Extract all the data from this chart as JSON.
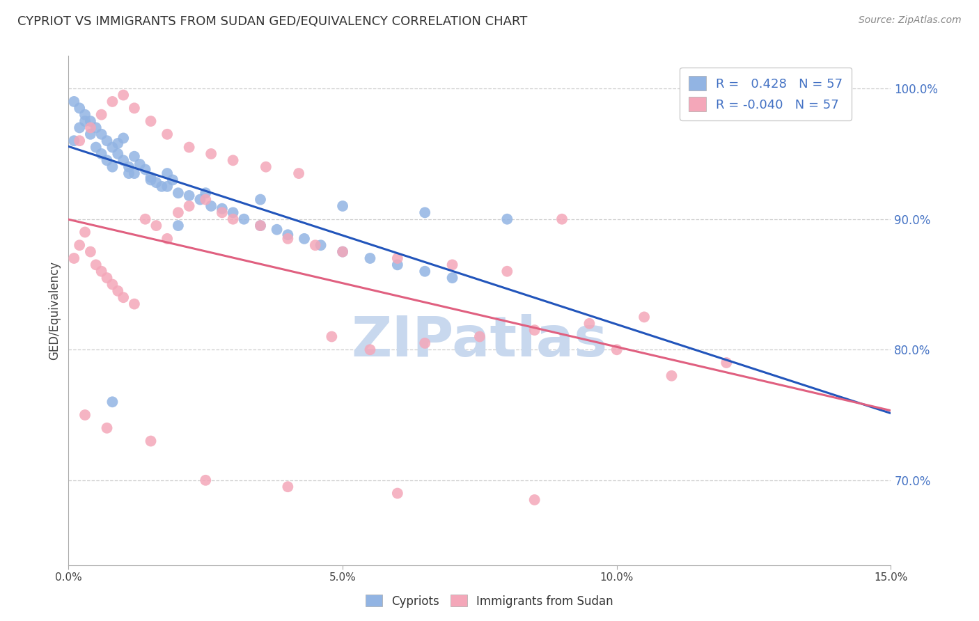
{
  "title": "CYPRIOT VS IMMIGRANTS FROM SUDAN GED/EQUIVALENCY CORRELATION CHART",
  "source": "Source: ZipAtlas.com",
  "ylabel": "GED/Equivalency",
  "ylabel_right_ticks": [
    "100.0%",
    "90.0%",
    "80.0%",
    "70.0%"
  ],
  "ylabel_right_vals": [
    1.0,
    0.9,
    0.8,
    0.7
  ],
  "xmin": 0.0,
  "xmax": 0.15,
  "ymin": 0.635,
  "ymax": 1.025,
  "cypriot_R": 0.428,
  "cypriot_N": 57,
  "sudan_R": -0.04,
  "sudan_N": 57,
  "cypriot_color": "#92b4e3",
  "sudan_color": "#f4a7b9",
  "cypriot_line_color": "#2255bb",
  "sudan_line_color": "#e06080",
  "watermark": "ZIPatlas",
  "watermark_color": "#c8d8ee",
  "cypriot_x": [
    0.001,
    0.002,
    0.003,
    0.004,
    0.005,
    0.006,
    0.007,
    0.008,
    0.009,
    0.01,
    0.011,
    0.012,
    0.013,
    0.014,
    0.015,
    0.016,
    0.017,
    0.018,
    0.019,
    0.02,
    0.022,
    0.024,
    0.026,
    0.028,
    0.03,
    0.032,
    0.035,
    0.038,
    0.04,
    0.043,
    0.046,
    0.05,
    0.055,
    0.06,
    0.065,
    0.07,
    0.001,
    0.002,
    0.003,
    0.004,
    0.005,
    0.006,
    0.007,
    0.008,
    0.009,
    0.01,
    0.011,
    0.012,
    0.015,
    0.018,
    0.025,
    0.035,
    0.05,
    0.065,
    0.08,
    0.02,
    0.008
  ],
  "cypriot_y": [
    0.96,
    0.97,
    0.975,
    0.965,
    0.955,
    0.95,
    0.945,
    0.94,
    0.958,
    0.962,
    0.935,
    0.948,
    0.942,
    0.938,
    0.932,
    0.928,
    0.925,
    0.935,
    0.93,
    0.92,
    0.918,
    0.915,
    0.91,
    0.908,
    0.905,
    0.9,
    0.895,
    0.892,
    0.888,
    0.885,
    0.88,
    0.875,
    0.87,
    0.865,
    0.86,
    0.855,
    0.99,
    0.985,
    0.98,
    0.975,
    0.97,
    0.965,
    0.96,
    0.955,
    0.95,
    0.945,
    0.94,
    0.935,
    0.93,
    0.925,
    0.92,
    0.915,
    0.91,
    0.905,
    0.9,
    0.895,
    0.76
  ],
  "sudan_x": [
    0.001,
    0.002,
    0.003,
    0.004,
    0.005,
    0.006,
    0.007,
    0.008,
    0.009,
    0.01,
    0.012,
    0.014,
    0.016,
    0.018,
    0.02,
    0.022,
    0.025,
    0.028,
    0.03,
    0.035,
    0.04,
    0.045,
    0.05,
    0.06,
    0.07,
    0.08,
    0.09,
    0.1,
    0.11,
    0.12,
    0.002,
    0.004,
    0.006,
    0.008,
    0.01,
    0.012,
    0.015,
    0.018,
    0.022,
    0.026,
    0.03,
    0.036,
    0.042,
    0.048,
    0.055,
    0.065,
    0.075,
    0.085,
    0.095,
    0.105,
    0.003,
    0.007,
    0.015,
    0.025,
    0.04,
    0.06,
    0.085
  ],
  "sudan_y": [
    0.87,
    0.88,
    0.89,
    0.875,
    0.865,
    0.86,
    0.855,
    0.85,
    0.845,
    0.84,
    0.835,
    0.9,
    0.895,
    0.885,
    0.905,
    0.91,
    0.915,
    0.905,
    0.9,
    0.895,
    0.885,
    0.88,
    0.875,
    0.87,
    0.865,
    0.86,
    0.9,
    0.8,
    0.78,
    0.79,
    0.96,
    0.97,
    0.98,
    0.99,
    0.995,
    0.985,
    0.975,
    0.965,
    0.955,
    0.95,
    0.945,
    0.94,
    0.935,
    0.81,
    0.8,
    0.805,
    0.81,
    0.815,
    0.82,
    0.825,
    0.75,
    0.74,
    0.73,
    0.7,
    0.695,
    0.69,
    0.685
  ]
}
